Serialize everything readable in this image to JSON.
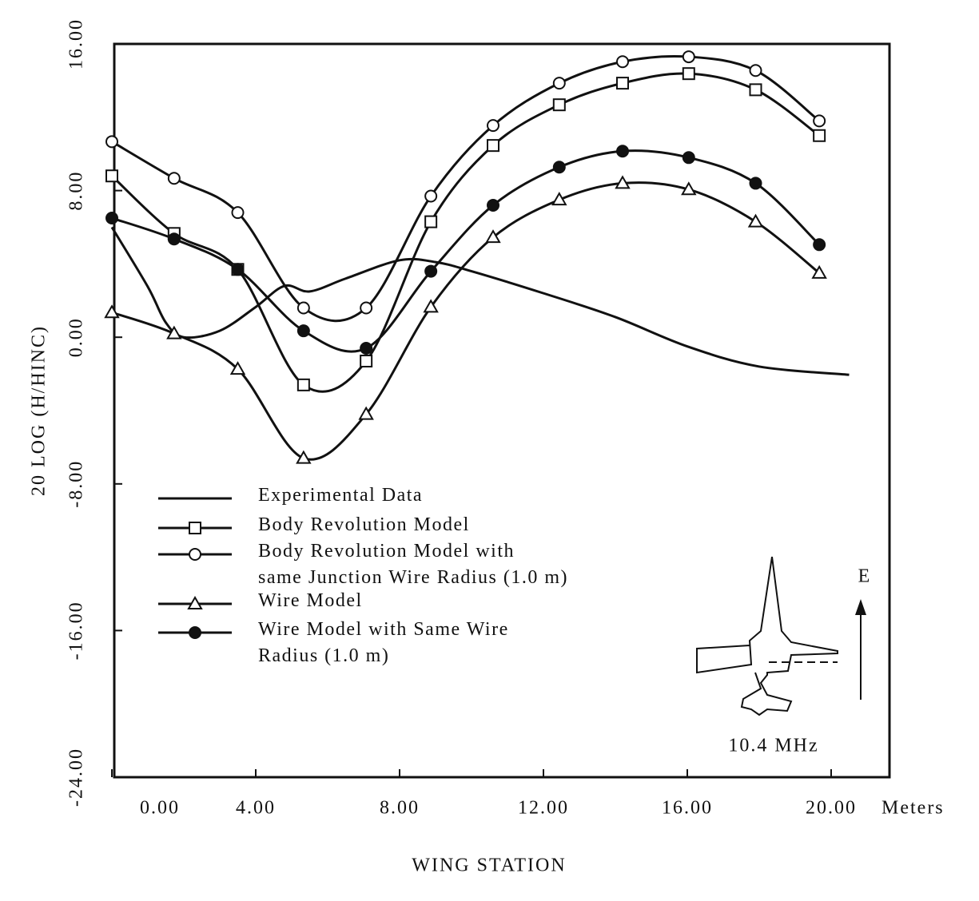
{
  "chart_data": {
    "type": "line",
    "y_label": "20 LOG (H/HINC)",
    "x_label": "WING STATION",
    "x_unit": "Meters",
    "xlim": [
      0,
      21.6
    ],
    "ylim": [
      -24,
      16
    ],
    "xticks": [
      {
        "value": 0,
        "label": "0.00"
      },
      {
        "value": 4,
        "label": "4.00"
      },
      {
        "value": 8,
        "label": "8.00"
      },
      {
        "value": 12,
        "label": "12.00"
      },
      {
        "value": 16,
        "label": "16.00"
      },
      {
        "value": 20,
        "label": "20.00"
      }
    ],
    "yticks": [
      {
        "value": -24,
        "label": "-24.00"
      },
      {
        "value": -16,
        "label": "-16.00"
      },
      {
        "value": -8,
        "label": "-8.00"
      },
      {
        "value": 0,
        "label": "0.00"
      },
      {
        "value": 8,
        "label": "8.00"
      },
      {
        "value": 16,
        "label": "16.00"
      }
    ],
    "annotations": [
      "10.4 MHz",
      "E"
    ],
    "series": [
      {
        "name": "Experimental Data",
        "color": "#111111",
        "marker": "none",
        "x": [
          0,
          1,
          1.5,
          2,
          3,
          4,
          4.8,
          5.5,
          6.5,
          8,
          9,
          10,
          12,
          14,
          16,
          18,
          20.5
        ],
        "values": [
          6.0,
          2.75,
          0.8,
          0,
          0.35,
          1.65,
          2.8,
          2.5,
          3.2,
          4.2,
          4.1,
          3.6,
          2.4,
          1.1,
          -0.5,
          -1.6,
          -2.05
        ]
      },
      {
        "name": "Body Revolution Model",
        "color": "#111111",
        "marker": "square",
        "x": [
          0,
          1.73,
          3.5,
          5.33,
          7.07,
          8.87,
          10.6,
          12.44,
          14.2,
          16.04,
          17.9,
          19.67
        ],
        "values": [
          8.8,
          5.66,
          3.7,
          -2.6,
          -1.3,
          6.3,
          10.46,
          12.68,
          13.86,
          14.38,
          13.5,
          11.0
        ]
      },
      {
        "name": "Body Revolution Model with\nsame Junction Wire Radius (1.0 m)",
        "color": "#111111",
        "marker": "circle",
        "x": [
          0,
          1.73,
          3.5,
          5.33,
          7.07,
          8.87,
          10.6,
          12.44,
          14.2,
          16.04,
          17.9,
          19.67
        ],
        "values": [
          10.67,
          8.67,
          6.8,
          1.6,
          1.6,
          7.7,
          11.55,
          13.86,
          15.03,
          15.3,
          14.55,
          11.8
        ]
      },
      {
        "name": "Wire Model",
        "color": "#111111",
        "marker": "triangle",
        "x": [
          0,
          1.73,
          3.5,
          5.33,
          7.07,
          8.87,
          10.6,
          12.44,
          14.2,
          16.04,
          17.9,
          19.67
        ],
        "values": [
          1.35,
          0.2,
          -1.74,
          -6.6,
          -4.2,
          1.65,
          5.45,
          7.5,
          8.4,
          8.06,
          6.3,
          3.5
        ]
      },
      {
        "name": "Wire Model with Same Wire\nRadius (1.0 m)",
        "color": "#111111",
        "marker": "filled-circle",
        "x": [
          0,
          1.73,
          3.5,
          5.33,
          7.07,
          8.87,
          10.6,
          12.44,
          14.2,
          16.04,
          17.9,
          19.67
        ],
        "values": [
          6.5,
          5.36,
          3.7,
          0.35,
          -0.6,
          3.6,
          7.2,
          9.28,
          10.15,
          9.8,
          8.4,
          5.05
        ]
      }
    ]
  }
}
